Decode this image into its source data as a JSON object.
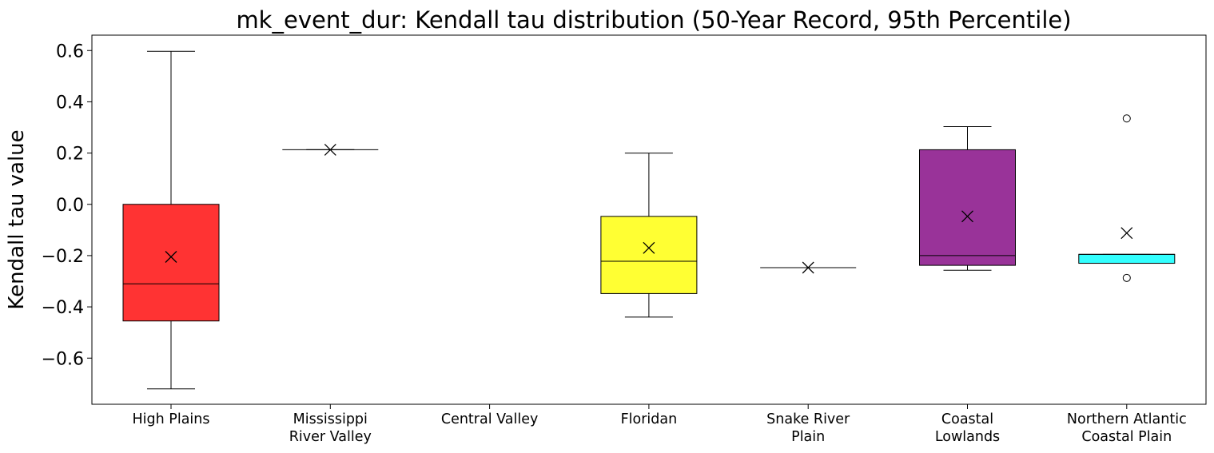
{
  "chart_data": {
    "type": "box",
    "title": "mk_event_dur: Kendall tau distribution (50-Year Record, 95th Percentile)",
    "xlabel": "",
    "ylabel": "Kendall tau value",
    "ylim": [
      -0.78,
      0.66
    ],
    "yticks": [
      -0.6,
      -0.4,
      -0.2,
      0.0,
      0.2,
      0.4,
      0.6
    ],
    "ytick_labels": [
      "−0.6",
      "−0.4",
      "−0.2",
      "0.0",
      "0.2",
      "0.4",
      "0.6"
    ],
    "grid": false,
    "categories": [
      {
        "lines": [
          "High Plains"
        ]
      },
      {
        "lines": [
          "Mississippi",
          "River Valley"
        ]
      },
      {
        "lines": [
          "Central Valley"
        ]
      },
      {
        "lines": [
          "Floridan"
        ]
      },
      {
        "lines": [
          "Snake River",
          "Plain"
        ]
      },
      {
        "lines": [
          "Coastal",
          "Lowlands"
        ]
      },
      {
        "lines": [
          "Northern Atlantic",
          "Coastal Plain"
        ]
      }
    ],
    "boxes": [
      {
        "color": "#ff0000",
        "whislo": -0.72,
        "q1": -0.455,
        "median": -0.31,
        "q3": 0.0,
        "whishi": 0.597,
        "mean": -0.205,
        "fliers": []
      },
      {
        "color": "#0000ff",
        "whislo": 0.213,
        "q1": 0.213,
        "median": 0.213,
        "q3": 0.213,
        "whishi": 0.213,
        "mean": 0.213,
        "fliers": []
      },
      null,
      {
        "color": "#ffff00",
        "whislo": -0.44,
        "q1": -0.348,
        "median": -0.222,
        "q3": -0.047,
        "whishi": 0.2,
        "mean": -0.17,
        "fliers": []
      },
      {
        "color": "#00ff00",
        "whislo": -0.247,
        "q1": -0.247,
        "median": -0.247,
        "q3": -0.247,
        "whishi": -0.247,
        "mean": -0.247,
        "fliers": []
      },
      {
        "color": "#800080",
        "whislo": -0.257,
        "q1": -0.238,
        "median": -0.2,
        "q3": 0.213,
        "whishi": 0.303,
        "mean": -0.047,
        "fliers": []
      },
      {
        "color": "#00ffff",
        "whislo": -0.23,
        "q1": -0.23,
        "median": -0.195,
        "q3": -0.195,
        "whishi": -0.195,
        "mean": -0.112,
        "fliers": [
          0.335,
          -0.287
        ]
      }
    ]
  }
}
